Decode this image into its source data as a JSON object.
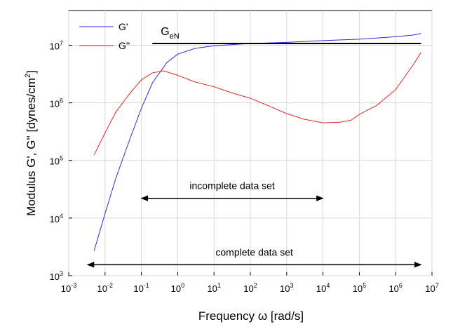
{
  "chart_data": {
    "type": "line",
    "x_label": "Frequency ω [rad/s]",
    "y_label": [
      "Modulus G', G'' [dynes/cm",
      "2",
      "]"
    ],
    "xscale": "log",
    "yscale": "log",
    "xlim": [
      0.001,
      10000000
    ],
    "ylim": [
      1000,
      40000000
    ],
    "xticks": [
      {
        "value": 0.001,
        "label": [
          "10",
          "-3"
        ]
      },
      {
        "value": 0.01,
        "label": [
          "10",
          "-2"
        ]
      },
      {
        "value": 0.1,
        "label": [
          "10",
          "-1"
        ]
      },
      {
        "value": 1,
        "label": [
          "10",
          "0"
        ]
      },
      {
        "value": 10,
        "label": [
          "10",
          "1"
        ]
      },
      {
        "value": 100,
        "label": [
          "10",
          "2"
        ]
      },
      {
        "value": 1000,
        "label": [
          "10",
          "3"
        ]
      },
      {
        "value": 10000,
        "label": [
          "10",
          "4"
        ]
      },
      {
        "value": 100000,
        "label": [
          "10",
          "5"
        ]
      },
      {
        "value": 1000000,
        "label": [
          "10",
          "6"
        ]
      },
      {
        "value": 10000000,
        "label": [
          "10",
          "7"
        ]
      }
    ],
    "yticks": [
      {
        "value": 1000,
        "label": [
          "10",
          "3"
        ]
      },
      {
        "value": 10000,
        "label": [
          "10",
          "4"
        ]
      },
      {
        "value": 100000,
        "label": [
          "10",
          "5"
        ]
      },
      {
        "value": 1000000,
        "label": [
          "10",
          "6"
        ]
      },
      {
        "value": 10000000,
        "label": [
          "10",
          "7"
        ]
      }
    ],
    "grid": true,
    "legend": "upper left",
    "series": [
      {
        "name": "G'",
        "color": "#2b2bd6",
        "x": [
          0.005,
          0.01,
          0.02,
          0.05,
          0.1,
          0.2,
          0.5,
          1,
          3,
          10,
          100,
          1000,
          10000,
          100000,
          1000000,
          3000000,
          5000000
        ],
        "values": [
          2700,
          12000,
          50000,
          250000,
          800000,
          2200000,
          5000000,
          7000000,
          8800000,
          9800000,
          10700000,
          11200000,
          12000000,
          12700000,
          14000000,
          15000000,
          16000000
        ]
      },
      {
        "name": "G''",
        "color": "#e8251f",
        "x": [
          0.005,
          0.01,
          0.02,
          0.05,
          0.1,
          0.2,
          0.4,
          1,
          3,
          10,
          30,
          100,
          300,
          1000,
          3000,
          10000,
          30000,
          60000,
          100000,
          300000,
          1000000,
          3000000,
          5000000
        ],
        "values": [
          125000,
          300000,
          700000,
          1500000,
          2500000,
          3300000,
          3600000,
          3000000,
          2300000,
          1900000,
          1500000,
          1200000,
          900000,
          650000,
          520000,
          450000,
          460000,
          500000,
          630000,
          900000,
          1700000,
          4500000,
          7500000
        ]
      }
    ],
    "annotations": [
      {
        "text": [
          "G",
          "eN"
        ],
        "y": 10700000,
        "x": [
          0.2,
          5000000
        ]
      },
      {
        "text": "incomplete data set",
        "y": 22000,
        "x": [
          0.1,
          10000
        ]
      },
      {
        "text": "complete data set",
        "y": 1550,
        "x": [
          0.0033,
          5000000
        ]
      }
    ]
  }
}
